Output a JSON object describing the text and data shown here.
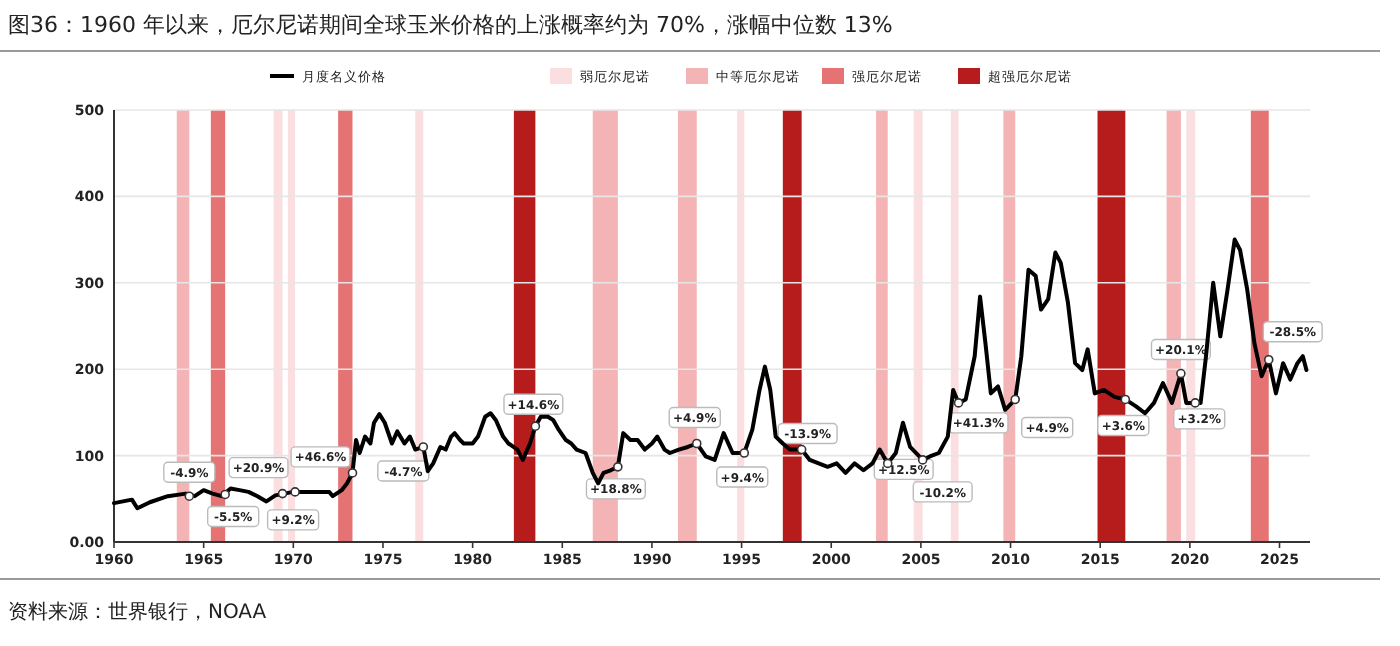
{
  "chart_data": {
    "type": "line",
    "title": "图36：1960 年以来，厄尔尼诺期间全球玉米价格的上涨概率约为 70%，涨幅中位数 13%",
    "x": [
      1960,
      1961,
      1961.3,
      1962,
      1963,
      1964,
      1964.5,
      1965,
      1965.5,
      1966,
      1966.5,
      1967,
      1967.5,
      1968,
      1968.5,
      1969,
      1969.5,
      1970,
      1971,
      1972,
      1972.2,
      1972.7,
      1973,
      1973.3,
      1973.5,
      1973.7,
      1974,
      1974.3,
      1974.5,
      1974.8,
      1975.1,
      1975.5,
      1975.8,
      1976.2,
      1976.5,
      1976.8,
      1977.25,
      1977.5,
      1977.8,
      1978.2,
      1978.5,
      1978.8,
      1979,
      1979.3,
      1979.5,
      1980,
      1980.3,
      1980.7,
      1981,
      1981.3,
      1981.7,
      1982,
      1982.5,
      1982.8,
      1983.2,
      1983.5,
      1983.8,
      1984.2,
      1984.5,
      1984.8,
      1985.2,
      1985.5,
      1985.8,
      1986.3,
      1986.7,
      1987,
      1987.3,
      1987.7,
      1988.1,
      1988.4,
      1988.8,
      1989.2,
      1989.6,
      1990,
      1990.3,
      1990.7,
      1991,
      1991.5,
      1992,
      1992.5,
      1993,
      1993.5,
      1994,
      1994.5,
      1995.15,
      1995.6,
      1996,
      1996.3,
      1996.6,
      1996.9,
      1997.3,
      1997.7,
      1998.35,
      1998.8,
      1999.3,
      1999.8,
      2000.3,
      2000.8,
      2001.3,
      2001.8,
      2002.3,
      2002.7,
      2003.15,
      2003.6,
      2004,
      2004.4,
      2005.1,
      2005.5,
      2006,
      2006.5,
      2006.8,
      2007.1,
      2007.5,
      2008,
      2008.3,
      2008.6,
      2008.9,
      2009.3,
      2009.7,
      2010.26,
      2010.6,
      2011,
      2011.4,
      2011.7,
      2012.1,
      2012.5,
      2012.8,
      2013.2,
      2013.6,
      2014,
      2014.3,
      2014.7,
      2015.2,
      2015.8,
      2016.4,
      2017,
      2017.5,
      2018,
      2018.5,
      2019,
      2019.5,
      2019.8,
      2020.3,
      2020.6,
      2020.9,
      2021.3,
      2021.7,
      2022.1,
      2022.5,
      2022.8,
      2023.2,
      2023.6,
      2024,
      2024.4,
      2024.8,
      2025.2,
      2025.6,
      2026,
      2026.3,
      2026.5
    ],
    "series": [
      {
        "name": "月度名义价格",
        "color": "#000000",
        "values": [
          45,
          49,
          39,
          46,
          53,
          56,
          53,
          60,
          56,
          53,
          62,
          60,
          58,
          53,
          47,
          54,
          56,
          58,
          58,
          58,
          53,
          60,
          68,
          80,
          118,
          103,
          122,
          114,
          138,
          148,
          138,
          114,
          128,
          114,
          122,
          107,
          110,
          82,
          91,
          110,
          107,
          122,
          126,
          118,
          114,
          114,
          122,
          145,
          149,
          141,
          122,
          114,
          107,
          95,
          114,
          134,
          145,
          145,
          141,
          130,
          118,
          114,
          107,
          103,
          80,
          68,
          80,
          83,
          87,
          126,
          118,
          118,
          107,
          114,
          122,
          107,
          103,
          107,
          110,
          114,
          99,
          95,
          126,
          103,
          103,
          130,
          176,
          203,
          176,
          122,
          114,
          107,
          107,
          95,
          91,
          87,
          91,
          80,
          91,
          83,
          91,
          107,
          91,
          103,
          138,
          110,
          95,
          99,
          103,
          122,
          176,
          161,
          165,
          215,
          284,
          230,
          172,
          180,
          153,
          165,
          215,
          315,
          308,
          269,
          281,
          335,
          323,
          277,
          207,
          199,
          223,
          172,
          176,
          168,
          165,
          157,
          149,
          161,
          184,
          161,
          195,
          161,
          161,
          161,
          215,
          300,
          238,
          292,
          350,
          338,
          292,
          230,
          192,
          211,
          172,
          207,
          188,
          207,
          215,
          199
        ]
      }
    ],
    "xlim": [
      1960,
      2026.7
    ],
    "xticks": [
      1960,
      1965,
      1970,
      1975,
      1980,
      1985,
      1990,
      1995,
      2000,
      2005,
      2010,
      2015,
      2020,
      2025
    ],
    "ylim": [
      0,
      500
    ],
    "yticks": [
      {
        "value": 0,
        "label": "0.00"
      },
      100,
      200,
      300,
      400,
      500
    ],
    "grid": "y",
    "legend": "top",
    "bands": [
      {
        "axis": "x",
        "from": 1963.5,
        "to": 1964.2,
        "label": "中等厄尔尼诺",
        "color": "#f4b3b5"
      },
      {
        "axis": "x",
        "from": 1965.4,
        "to": 1966.2,
        "label": "强厄尔尼诺",
        "color": "#e57373"
      },
      {
        "axis": "x",
        "from": 1968.9,
        "to": 1969.4,
        "label": "弱厄尔尼诺",
        "color": "#fbdfe0"
      },
      {
        "axis": "x",
        "from": 1969.7,
        "to": 1970.1,
        "color": "#fbdfe0"
      },
      {
        "axis": "x",
        "from": 1972.5,
        "to": 1973.3,
        "color": "#e57373"
      },
      {
        "axis": "x",
        "from": 1976.8,
        "to": 1977.25,
        "color": "#fbdfe0"
      },
      {
        "axis": "x",
        "from": 1982.3,
        "to": 1983.5,
        "label": "超强厄尔尼诺",
        "color": "#b71c1c"
      },
      {
        "axis": "x",
        "from": 1986.7,
        "to": 1988.1,
        "color": "#f4b3b5"
      },
      {
        "axis": "x",
        "from": 1991.45,
        "to": 1992.5,
        "color": "#f4b3b5"
      },
      {
        "axis": "x",
        "from": 1994.75,
        "to": 1995.15,
        "color": "#fbdfe0"
      },
      {
        "axis": "x",
        "from": 1997.3,
        "to": 1998.35,
        "color": "#b71c1c"
      },
      {
        "axis": "x",
        "from": 2002.5,
        "to": 2003.15,
        "color": "#f4b3b5"
      },
      {
        "axis": "x",
        "from": 2004.6,
        "to": 2005.1,
        "color": "#fbdfe0"
      },
      {
        "axis": "x",
        "from": 2006.67,
        "to": 2007.1,
        "color": "#fbdfe0"
      },
      {
        "axis": "x",
        "from": 2009.6,
        "to": 2010.26,
        "color": "#f4b3b5"
      },
      {
        "axis": "x",
        "from": 2014.85,
        "to": 2016.4,
        "color": "#b71c1c"
      },
      {
        "axis": "x",
        "from": 2018.7,
        "to": 2019.5,
        "color": "#f4b3b5"
      },
      {
        "axis": "x",
        "from": 2019.8,
        "to": 2020.3,
        "color": "#fbdfe0"
      },
      {
        "axis": "x",
        "from": 2023.4,
        "to": 2024.4,
        "color": "#e57373"
      }
    ],
    "annotations": [
      {
        "text": "-4.9%",
        "x": 1964.2,
        "y": 53
      },
      {
        "text": "-5.5%",
        "x": 1966.2,
        "y": 55
      },
      {
        "text": "+20.9%",
        "x": 1969.4,
        "y": 56
      },
      {
        "text": "+9.2%",
        "x": 1970.1,
        "y": 58
      },
      {
        "text": "+46.6%",
        "x": 1973.3,
        "y": 80
      },
      {
        "text": "-4.7%",
        "x": 1977.25,
        "y": 110
      },
      {
        "text": "+14.6%",
        "x": 1983.5,
        "y": 134
      },
      {
        "text": "+18.8%",
        "x": 1988.1,
        "y": 87
      },
      {
        "text": "+4.9%",
        "x": 1992.5,
        "y": 114
      },
      {
        "text": "+9.4%",
        "x": 1995.15,
        "y": 103
      },
      {
        "text": "-13.9%",
        "x": 1998.35,
        "y": 107
      },
      {
        "text": "+12.5%",
        "x": 2003.15,
        "y": 91
      },
      {
        "text": "-10.2%",
        "x": 2005.1,
        "y": 95
      },
      {
        "text": "+41.3%",
        "x": 2007.1,
        "y": 161
      },
      {
        "text": "+4.9%",
        "x": 2010.26,
        "y": 165
      },
      {
        "text": "+3.6%",
        "x": 2016.4,
        "y": 165
      },
      {
        "text": "+20.1%",
        "x": 2019.5,
        "y": 195
      },
      {
        "text": "+3.2%",
        "x": 2020.3,
        "y": 161
      },
      {
        "text": "-28.5%",
        "x": 2024.4,
        "y": 211
      },
      "资料来源：世界银行，NOAA"
    ]
  }
}
